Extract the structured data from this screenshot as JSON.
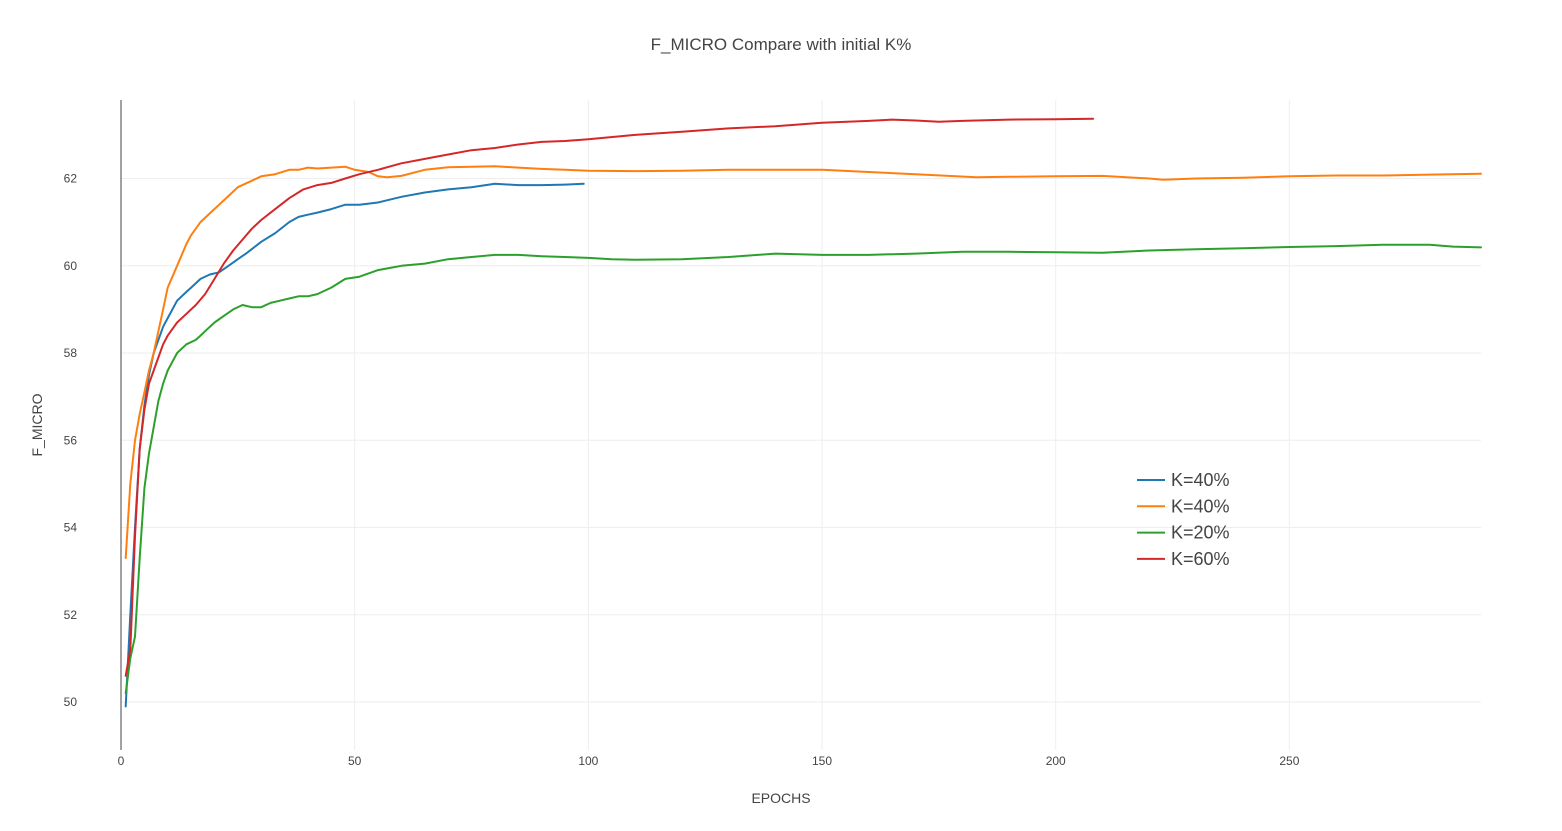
{
  "chart_data": {
    "type": "line",
    "title": "F_MICRO Compare with initial K%",
    "xlabel": "EPOCHS",
    "ylabel": "F_MICRO",
    "xlim": [
      0,
      291
    ],
    "ylim": [
      48.9,
      63.8
    ],
    "xticks": [
      0,
      50,
      100,
      150,
      200,
      250
    ],
    "yticks": [
      50,
      52,
      54,
      56,
      58,
      60,
      62
    ],
    "grid": true,
    "legend_position": "right",
    "series": [
      {
        "name": "K=40%",
        "color": "#1f77b4",
        "x": [
          1,
          2,
          3,
          4,
          5,
          6,
          7,
          8,
          9,
          10,
          12,
          14,
          15,
          17,
          19,
          21,
          23,
          25,
          27,
          30,
          33,
          36,
          38,
          40,
          42,
          45,
          48,
          51,
          55,
          60,
          65,
          70,
          75,
          80,
          85,
          90,
          95,
          99
        ],
        "y": [
          49.9,
          52.0,
          54.0,
          55.8,
          56.8,
          57.5,
          58.0,
          58.3,
          58.6,
          58.8,
          59.2,
          59.4,
          59.5,
          59.7,
          59.8,
          59.85,
          60.0,
          60.15,
          60.3,
          60.55,
          60.75,
          61.0,
          61.12,
          61.17,
          61.22,
          61.3,
          61.4,
          61.4,
          61.45,
          61.58,
          61.68,
          61.75,
          61.8,
          61.88,
          61.85,
          61.85,
          61.86,
          61.88
        ]
      },
      {
        "name": "K=40%",
        "color": "#ff7f0e",
        "x": [
          1,
          2,
          3,
          4,
          5,
          6,
          7,
          8,
          9,
          10,
          12,
          14,
          15,
          17,
          19,
          21,
          23,
          25,
          28,
          30,
          33,
          36,
          38,
          40,
          42,
          45,
          48,
          50,
          53,
          55,
          57,
          60,
          65,
          70,
          75,
          80,
          85,
          90,
          95,
          100,
          110,
          120,
          130,
          150,
          160,
          170,
          183,
          190,
          200,
          210,
          220,
          223,
          230,
          240,
          250,
          260,
          270,
          280,
          291
        ],
        "y": [
          53.3,
          55.0,
          56.0,
          56.6,
          57.1,
          57.6,
          58.0,
          58.5,
          59.0,
          59.5,
          60.0,
          60.5,
          60.7,
          61.0,
          61.2,
          61.4,
          61.6,
          61.8,
          61.95,
          62.05,
          62.1,
          62.2,
          62.2,
          62.25,
          62.23,
          62.25,
          62.27,
          62.2,
          62.15,
          62.05,
          62.03,
          62.06,
          62.2,
          62.26,
          62.27,
          62.28,
          62.25,
          62.22,
          62.2,
          62.18,
          62.17,
          62.18,
          62.2,
          62.2,
          62.15,
          62.1,
          62.03,
          62.04,
          62.05,
          62.06,
          62.0,
          61.97,
          62.0,
          62.02,
          62.05,
          62.07,
          62.07,
          62.09,
          62.11
        ]
      },
      {
        "name": "K=20%",
        "color": "#2ca02c",
        "x": [
          1,
          2,
          3,
          4,
          5,
          6,
          7,
          8,
          9,
          10,
          12,
          14,
          16,
          17,
          18,
          20,
          22,
          24,
          26,
          28,
          30,
          32,
          34,
          36,
          38,
          40,
          42,
          45,
          48,
          51,
          55,
          60,
          65,
          70,
          75,
          80,
          85,
          90,
          95,
          100,
          105,
          110,
          120,
          130,
          140,
          150,
          160,
          170,
          180,
          190,
          200,
          210,
          220,
          230,
          240,
          250,
          260,
          270,
          280,
          285,
          291
        ],
        "y": [
          50.2,
          51.0,
          51.5,
          53.3,
          54.9,
          55.7,
          56.3,
          56.9,
          57.3,
          57.6,
          58.0,
          58.2,
          58.3,
          58.4,
          58.5,
          58.7,
          58.85,
          59.0,
          59.1,
          59.05,
          59.05,
          59.15,
          59.2,
          59.25,
          59.3,
          59.3,
          59.35,
          59.5,
          59.7,
          59.75,
          59.9,
          60.0,
          60.05,
          60.15,
          60.2,
          60.25,
          60.25,
          60.22,
          60.2,
          60.18,
          60.15,
          60.14,
          60.15,
          60.2,
          60.28,
          60.25,
          60.25,
          60.28,
          60.32,
          60.32,
          60.31,
          60.3,
          60.35,
          60.38,
          60.4,
          60.43,
          60.45,
          60.48,
          60.48,
          60.44,
          60.42
        ]
      },
      {
        "name": "K=60%",
        "color": "#d62728",
        "x": [
          1,
          2,
          3,
          4,
          5,
          6,
          7,
          8,
          9,
          10,
          12,
          14,
          16,
          18,
          20,
          22,
          24,
          26,
          28,
          30,
          33,
          36,
          39,
          42,
          45,
          48,
          51,
          55,
          60,
          65,
          70,
          75,
          80,
          85,
          90,
          95,
          100,
          110,
          120,
          130,
          140,
          150,
          160,
          165,
          170,
          175,
          180,
          190,
          200,
          208
        ],
        "y": [
          50.6,
          51.2,
          53.8,
          55.8,
          56.7,
          57.3,
          57.6,
          57.9,
          58.2,
          58.4,
          58.7,
          58.9,
          59.1,
          59.35,
          59.7,
          60.05,
          60.35,
          60.6,
          60.85,
          61.05,
          61.3,
          61.55,
          61.75,
          61.85,
          61.9,
          62.0,
          62.1,
          62.2,
          62.35,
          62.45,
          62.55,
          62.65,
          62.7,
          62.78,
          62.84,
          62.86,
          62.9,
          63.0,
          63.07,
          63.15,
          63.2,
          63.28,
          63.32,
          63.35,
          63.33,
          63.3,
          63.32,
          63.35,
          63.36,
          63.37
        ]
      }
    ]
  }
}
